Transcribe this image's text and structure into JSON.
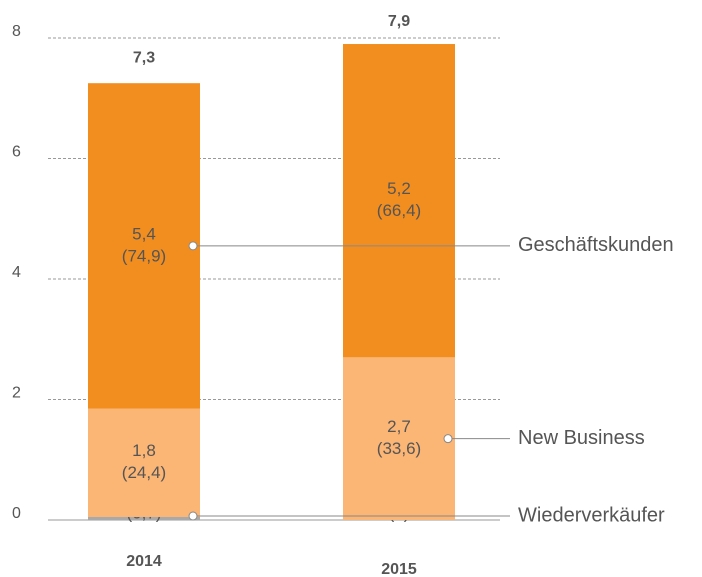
{
  "chart_data": {
    "type": "stacked_bar",
    "categories": [
      "2014",
      "2015"
    ],
    "series": [
      {
        "name": "Wiederverkäufer",
        "color": "#a9a9a9",
        "label_color": "#8a8a8a",
        "values": [
          0.05,
          0
        ],
        "share_labels": [
          "(0,7)",
          "(0)"
        ]
      },
      {
        "name": "New Business",
        "color": "#fbb574",
        "label_color": "#7a7a7a",
        "values": [
          1.8,
          2.7
        ],
        "value_labels": [
          "1,8",
          "2,7"
        ],
        "share_labels": [
          "(24,4)",
          "(33,6)"
        ]
      },
      {
        "name": "Geschäftskunden",
        "color": "#f28e1f",
        "label_color": "#ffffff",
        "values": [
          5.4,
          5.2
        ],
        "value_labels": [
          "5,4",
          "5,2"
        ],
        "share_labels": [
          "(74,9)",
          "(66,4)"
        ]
      }
    ],
    "totals": [
      7.3,
      7.9
    ],
    "total_labels": [
      "7,3",
      "7,9"
    ],
    "ylim": [
      0,
      8
    ],
    "yticks": [
      0,
      2,
      4,
      6,
      8
    ],
    "grid": true
  }
}
